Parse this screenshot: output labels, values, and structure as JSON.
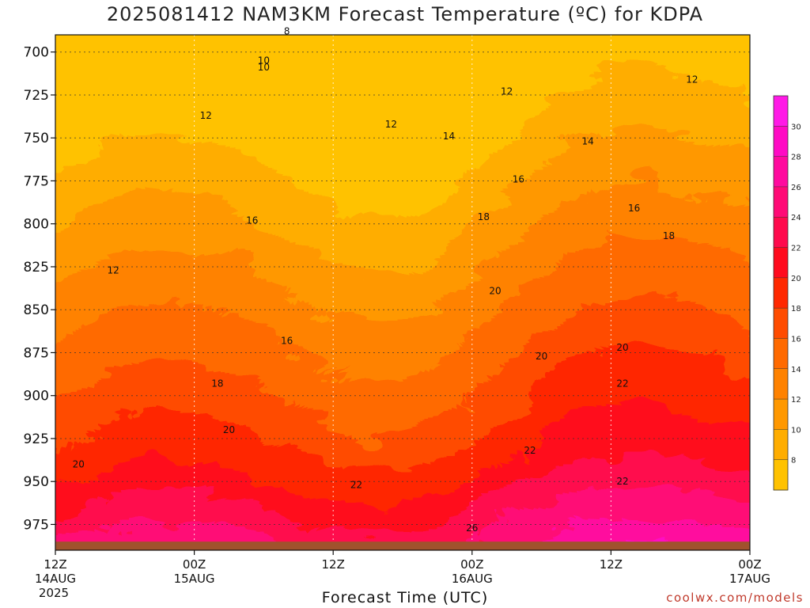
{
  "title": "2025081412 NAM3KM Forecast Temperature (ºC) for KDPA",
  "credit": "coolwx.com/models",
  "chart_data": {
    "type": "heatmap",
    "title": "2025081412 NAM3KM Forecast Temperature (ºC) for KDPA",
    "xlabel": "Forecast Time (UTC)",
    "ylabel": "",
    "y_axis": {
      "ticks": [
        700,
        725,
        750,
        775,
        800,
        825,
        850,
        875,
        900,
        925,
        950,
        975
      ],
      "range": [
        690,
        990
      ],
      "inverted": true
    },
    "x_axis": {
      "range_hours": [
        0,
        60
      ],
      "ticks": [
        {
          "hour": 0,
          "label": "12Z",
          "sub": "14AUG",
          "sub2": "2025"
        },
        {
          "hour": 12,
          "label": "00Z",
          "sub": "15AUG",
          "sub2": ""
        },
        {
          "hour": 24,
          "label": "12Z",
          "sub": "",
          "sub2": ""
        },
        {
          "hour": 36,
          "label": "00Z",
          "sub": "16AUG",
          "sub2": ""
        },
        {
          "hour": 48,
          "label": "12Z",
          "sub": "",
          "sub2": ""
        },
        {
          "hour": 60,
          "label": "00Z",
          "sub": "17AUG",
          "sub2": ""
        }
      ]
    },
    "grid": true,
    "legend": "right colorbar",
    "colorbar": {
      "ticks": [
        8,
        10,
        12,
        14,
        16,
        18,
        20,
        22,
        24,
        26,
        28,
        30
      ],
      "colors": [
        "#ffc200",
        "#ffad00",
        "#ff9800",
        "#ff8200",
        "#ff6a00",
        "#ff4c00",
        "#ff2800",
        "#ff0b1e",
        "#ff0a4d",
        "#ff0a76",
        "#ff0a9e",
        "#ff0ac4",
        "#ff1ae6"
      ]
    },
    "surface_color": "#a0522d",
    "surface_pressure": 985,
    "contour_labels": [
      {
        "value": "8",
        "hour": 20,
        "p": 688
      },
      {
        "value": "10",
        "hour": 18,
        "p": 709
      },
      {
        "value": "10",
        "hour": 18,
        "p": 705
      },
      {
        "value": "12",
        "hour": 13,
        "p": 737
      },
      {
        "value": "12",
        "hour": 29,
        "p": 742
      },
      {
        "value": "12",
        "hour": 39,
        "p": 723
      },
      {
        "value": "12",
        "hour": 55,
        "p": 716
      },
      {
        "value": "12",
        "hour": 5,
        "p": 827
      },
      {
        "value": "14",
        "hour": 34,
        "p": 749
      },
      {
        "value": "14",
        "hour": 46,
        "p": 752
      },
      {
        "value": "16",
        "hour": 17,
        "p": 798
      },
      {
        "value": "16",
        "hour": 20,
        "p": 868
      },
      {
        "value": "16",
        "hour": 40,
        "p": 774
      },
      {
        "value": "16",
        "hour": 50,
        "p": 791
      },
      {
        "value": "18",
        "hour": 37,
        "p": 796
      },
      {
        "value": "18",
        "hour": 53,
        "p": 807
      },
      {
        "value": "18",
        "hour": 14,
        "p": 893
      },
      {
        "value": "20",
        "hour": 38,
        "p": 839
      },
      {
        "value": "20",
        "hour": 49,
        "p": 872
      },
      {
        "value": "20",
        "hour": 42,
        "p": 877
      },
      {
        "value": "20",
        "hour": 15,
        "p": 920
      },
      {
        "value": "20",
        "hour": 2,
        "p": 940
      },
      {
        "value": "22",
        "hour": 26,
        "p": 952
      },
      {
        "value": "22",
        "hour": 41,
        "p": 932
      },
      {
        "value": "22",
        "hour": 49,
        "p": 893
      },
      {
        "value": "22",
        "hour": 49,
        "p": 950
      },
      {
        "value": "26",
        "hour": 36,
        "p": 977
      }
    ]
  }
}
